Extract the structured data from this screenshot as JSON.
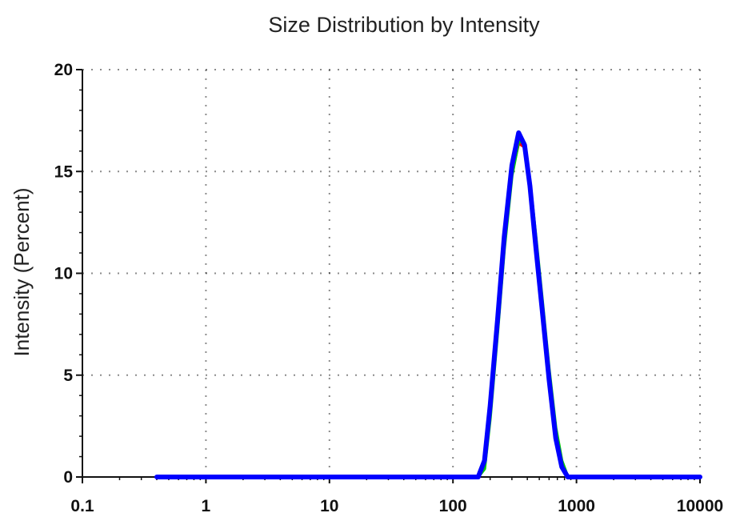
{
  "chart_data": {
    "type": "line",
    "title": "Size Distribution by Intensity",
    "xlabel": "",
    "ylabel": "Intensity (Percent)",
    "xscale": "log",
    "xlim": [
      0.1,
      10000
    ],
    "ylim": [
      0,
      20
    ],
    "x_ticks": [
      "0.1",
      "1",
      "10",
      "100",
      "1000",
      "10000"
    ],
    "y_ticks": [
      "0",
      "5",
      "10",
      "15",
      "20"
    ],
    "grid": true,
    "series": [
      {
        "color": "#ff0000",
        "x": [
          0.4,
          1,
          10,
          100,
          160,
          180,
          200,
          230,
          260,
          300,
          340,
          380,
          420,
          470,
          530,
          600,
          680,
          760,
          850,
          950,
          1000,
          10000
        ],
        "y": [
          0,
          0,
          0,
          0,
          0,
          0.6,
          3.2,
          7.5,
          11.5,
          15,
          16.4,
          16.2,
          14.2,
          11.4,
          8.3,
          5,
          2.1,
          0.6,
          0,
          0,
          0,
          0
        ]
      },
      {
        "color": "#00cc00",
        "x": [
          0.4,
          1,
          10,
          100,
          160,
          180,
          200,
          230,
          260,
          300,
          340,
          380,
          420,
          470,
          530,
          600,
          680,
          760,
          850,
          950,
          1000,
          10000
        ],
        "y": [
          0,
          0,
          0,
          0,
          0,
          0.4,
          2.9,
          7.2,
          11.2,
          14.8,
          16.5,
          16.4,
          14.5,
          11.7,
          8.6,
          5.3,
          2.4,
          0.8,
          0,
          0,
          0,
          0
        ]
      },
      {
        "color": "#0000ff",
        "x": [
          0.4,
          1,
          10,
          100,
          160,
          180,
          200,
          230,
          260,
          300,
          340,
          380,
          420,
          470,
          530,
          600,
          680,
          760,
          850,
          950,
          1000,
          10000
        ],
        "y": [
          0,
          0,
          0,
          0,
          0,
          0.8,
          3.5,
          7.8,
          11.8,
          15.3,
          16.9,
          16.3,
          14.3,
          11.2,
          8.1,
          4.8,
          1.9,
          0.5,
          0,
          0,
          0,
          0
        ]
      }
    ]
  }
}
